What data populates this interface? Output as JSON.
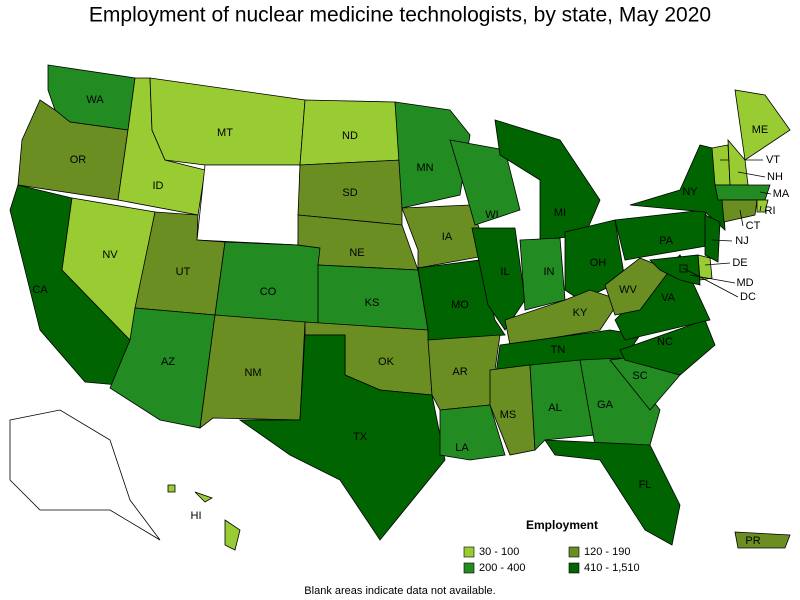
{
  "title": "Employment of nuclear medicine technologists, by state, May 2020",
  "legend": {
    "title": "Employment",
    "bins": [
      {
        "label": "30 - 100",
        "color": "#99cc33"
      },
      {
        "label": "120 - 190",
        "color": "#6b8e23"
      },
      {
        "label": "200 - 400",
        "color": "#228b22"
      },
      {
        "label": "410 - 1,510",
        "color": "#006400"
      }
    ]
  },
  "states": [
    {
      "label": "WA",
      "bin": 2
    },
    {
      "label": "OR",
      "bin": 1
    },
    {
      "label": "CA",
      "bin": 3
    },
    {
      "label": "NV",
      "bin": 0
    },
    {
      "label": "ID",
      "bin": 0
    },
    {
      "label": "MT",
      "bin": 0
    },
    {
      "label": null,
      "bin": null
    },
    {
      "label": "UT",
      "bin": 1
    },
    {
      "label": "AZ",
      "bin": 2
    },
    {
      "label": "CO",
      "bin": 2
    },
    {
      "label": "NM",
      "bin": 1
    },
    {
      "label": "ND",
      "bin": 0
    },
    {
      "label": "SD",
      "bin": 1
    },
    {
      "label": "NE",
      "bin": 1
    },
    {
      "label": "KS",
      "bin": 2
    },
    {
      "label": "OK",
      "bin": 1
    },
    {
      "label": "TX",
      "bin": 3
    },
    {
      "label": "MN",
      "bin": 2
    },
    {
      "label": "IA",
      "bin": 1
    },
    {
      "label": "MO",
      "bin": 3
    },
    {
      "label": "AR",
      "bin": 1
    },
    {
      "label": "LA",
      "bin": 2
    },
    {
      "label": "WI",
      "bin": 2
    },
    {
      "label": "IL",
      "bin": 3
    },
    {
      "label": "MI",
      "bin": 3
    },
    {
      "label": "IN",
      "bin": 2
    },
    {
      "label": "OH",
      "bin": 3
    },
    {
      "label": "KY",
      "bin": 1
    },
    {
      "label": "TN",
      "bin": 3
    },
    {
      "label": "MS",
      "bin": 1
    },
    {
      "label": "AL",
      "bin": 2
    },
    {
      "label": "GA",
      "bin": 2
    },
    {
      "label": "FL",
      "bin": 3
    },
    {
      "label": "SC",
      "bin": 2
    },
    {
      "label": "NC",
      "bin": 3
    },
    {
      "label": "VA",
      "bin": 3
    },
    {
      "label": "WV",
      "bin": 1
    },
    {
      "label": "PA",
      "bin": 3
    },
    {
      "label": "NY",
      "bin": 3
    },
    {
      "label": "ME",
      "bin": 0
    },
    {
      "label": "VT",
      "bin": 0
    },
    {
      "label": "NH",
      "bin": 0
    },
    {
      "label": "MA",
      "bin": 2
    },
    {
      "label": "RI",
      "bin": 0
    },
    {
      "label": "CT",
      "bin": 1
    },
    {
      "label": "NJ",
      "bin": 3
    },
    {
      "label": "DE",
      "bin": 0
    },
    {
      "label": "MD",
      "bin": 3
    },
    {
      "label": "DC",
      "bin": 3
    },
    {
      "label": null,
      "bin": null
    },
    {
      "label": "HI",
      "bin": 0
    },
    {
      "label": "PR",
      "bin": 1
    }
  ],
  "note": "Blank areas indicate data not available."
}
